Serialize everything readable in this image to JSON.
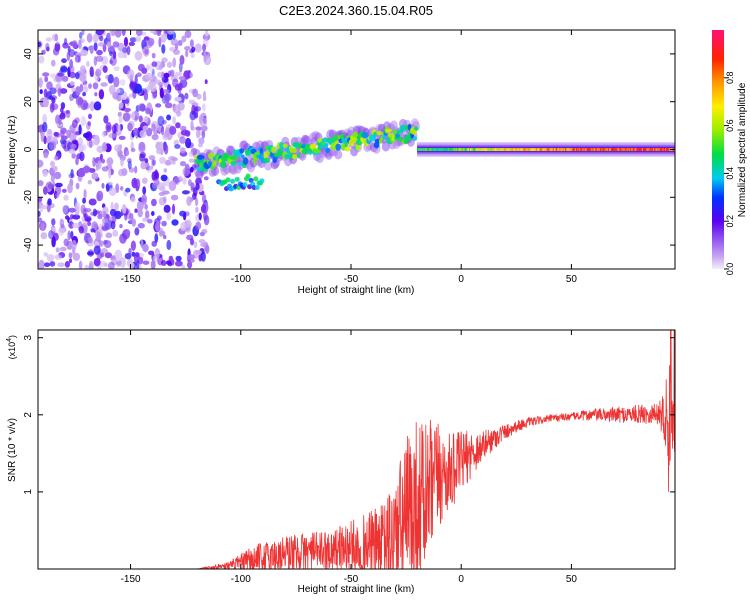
{
  "title": "C2E3.2024.360.15.04.R05",
  "chart_data": [
    {
      "type": "heatmap",
      "name": "spectrogram",
      "xlabel": "Height of straight line (km)",
      "ylabel": "Frequency (Hz)",
      "xlim": [
        -192,
        97
      ],
      "ylim": [
        -50,
        50
      ],
      "xticks": [
        -150,
        -100,
        -50,
        0,
        50
      ],
      "xtick_labels": [
        "-150",
        "-100",
        "-50",
        "0",
        "50"
      ],
      "yticks": [
        -40,
        -20,
        0,
        20,
        40
      ],
      "ytick_labels": [
        "-40",
        "-20",
        "0",
        "20",
        "40"
      ],
      "colorbar": {
        "label": "Normalized spectral amplitude",
        "range": [
          0,
          1
        ],
        "ticks": [
          0.0,
          0.2,
          0.4,
          0.6,
          0.8
        ],
        "tick_labels": [
          "0.0",
          "0.2",
          "0.4",
          "0.6",
          "0.8"
        ]
      },
      "features": {
        "noise_region_x": [
          -192,
          -115
        ],
        "rising_band": {
          "x_start": -120,
          "x_end": -20,
          "freq_start": -6,
          "freq_end": 7
        },
        "lower_branch": {
          "x_start": -110,
          "x_end": -90,
          "freq": -14
        },
        "steady_line": {
          "x_start": -20,
          "x_end": 97,
          "freq": 0
        }
      }
    },
    {
      "type": "line",
      "name": "snr",
      "xlabel": "Height of straight line (km)",
      "ylabel": "SNR (10 * v/v)",
      "scale_label": "(x10",
      "scale_exp": "4",
      "scale_close": ")",
      "xlim": [
        -192,
        97
      ],
      "ylim": [
        0,
        3.1
      ],
      "xticks": [
        -150,
        -100,
        -50,
        0,
        50
      ],
      "xtick_labels": [
        "-150",
        "-100",
        "-50",
        "0",
        "50"
      ],
      "yticks": [
        1,
        2,
        3
      ],
      "ytick_labels": [
        "1",
        "2",
        "3"
      ],
      "color": "#ee3333",
      "trend": {
        "x": [
          -192,
          -120,
          -105,
          -95,
          -80,
          -60,
          -45,
          -35,
          -28,
          -22,
          -15,
          -10,
          -5,
          0,
          5,
          10,
          15,
          20,
          25,
          30,
          40,
          50,
          60,
          70,
          80,
          90,
          95,
          97
        ],
        "y": [
          0.0,
          0.0,
          0.05,
          0.1,
          0.2,
          0.25,
          0.3,
          0.35,
          0.5,
          0.8,
          0.95,
          1.2,
          1.25,
          1.4,
          1.5,
          1.6,
          1.7,
          1.78,
          1.85,
          1.9,
          1.95,
          1.98,
          2.0,
          2.0,
          2.01,
          2.02,
          2.0,
          2.0
        ],
        "amp": [
          0.0,
          0.0,
          0.05,
          0.2,
          0.25,
          0.25,
          0.4,
          0.5,
          0.9,
          1.2,
          1.0,
          0.7,
          0.5,
          0.4,
          0.3,
          0.2,
          0.15,
          0.1,
          0.08,
          0.06,
          0.05,
          0.05,
          0.08,
          0.1,
          0.12,
          0.15,
          0.8,
          0.8
        ]
      }
    }
  ]
}
